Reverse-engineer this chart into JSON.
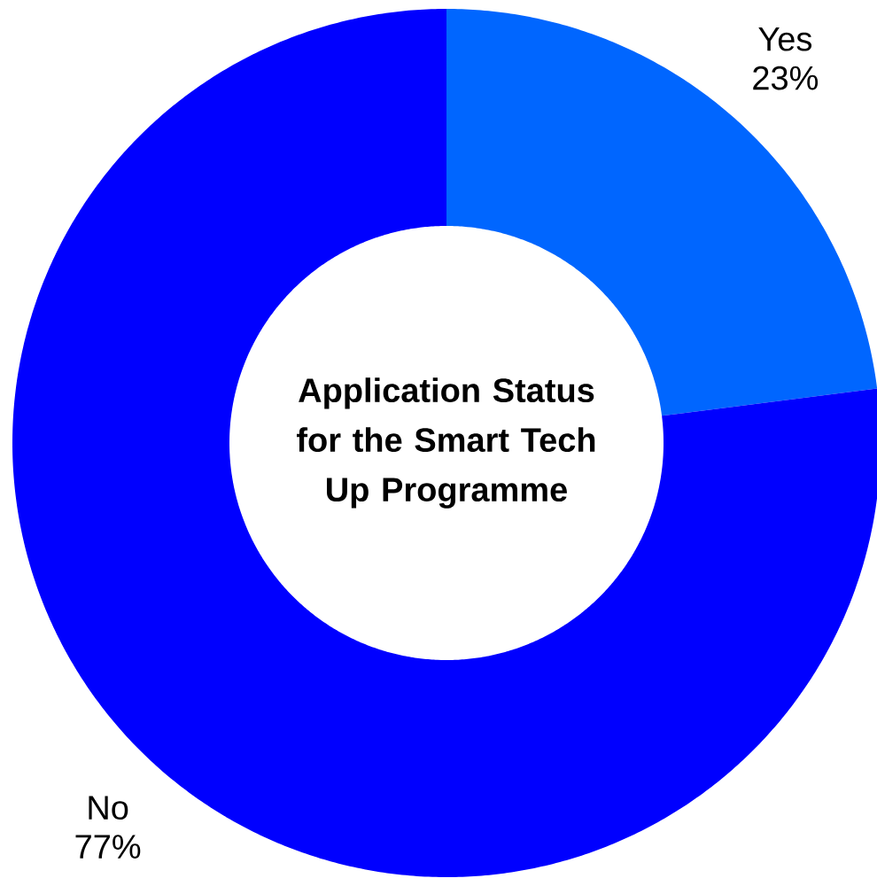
{
  "chart_data": {
    "type": "donut",
    "title": "Application Status for the Smart Tech Up Programme",
    "categories": [
      "Yes",
      "No"
    ],
    "values": [
      23,
      77
    ],
    "colors": [
      "#0066ff",
      "#0000ff"
    ],
    "value_labels": [
      "23%",
      "77%"
    ]
  }
}
